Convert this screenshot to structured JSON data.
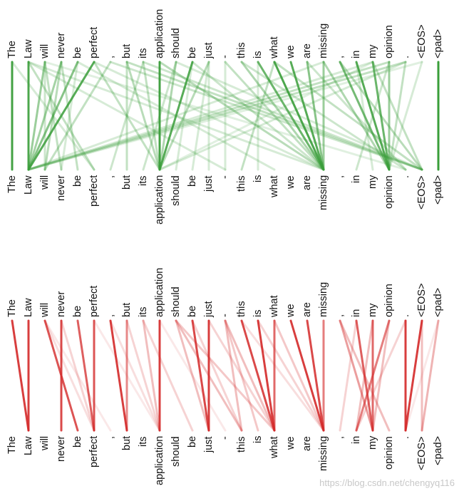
{
  "tokens": [
    "The",
    "Law",
    "will",
    "never",
    "be",
    "perfect",
    ",",
    "but",
    "its",
    "application",
    "should",
    "be",
    "just",
    "-",
    "this",
    "is",
    "what",
    "we",
    "are",
    "missing",
    ",",
    "in",
    "my",
    "opinion",
    ".",
    "<EOS>",
    "<pad>"
  ],
  "colors": {
    "top_edge": "#3a9e3a",
    "bottom_edge": "#d42a2a",
    "text": "#111111"
  },
  "panels": [
    {
      "name": "attention-green",
      "edges": [
        [
          0,
          0,
          0.95
        ],
        [
          1,
          1,
          0.9
        ],
        [
          24,
          1,
          0.3
        ],
        [
          19,
          1,
          0.2
        ],
        [
          22,
          1,
          0.2
        ],
        [
          25,
          1,
          0.15
        ],
        [
          5,
          1,
          0.85
        ],
        [
          4,
          1,
          0.6
        ],
        [
          3,
          1,
          0.45
        ],
        [
          2,
          1,
          0.5
        ],
        [
          2,
          3,
          0.3
        ],
        [
          3,
          4,
          0.3
        ],
        [
          1,
          5,
          0.3
        ],
        [
          0,
          5,
          0.2
        ],
        [
          6,
          2,
          0.3
        ],
        [
          3,
          2,
          0.35
        ],
        [
          2,
          2,
          0.25
        ],
        [
          4,
          3,
          0.2
        ],
        [
          9,
          9,
          0.95
        ],
        [
          11,
          9,
          0.85
        ],
        [
          10,
          9,
          0.4
        ],
        [
          8,
          9,
          0.3
        ],
        [
          7,
          9,
          0.35
        ],
        [
          5,
          9,
          0.3
        ],
        [
          12,
          9,
          0.35
        ],
        [
          7,
          7,
          0.3
        ],
        [
          8,
          6,
          0.25
        ],
        [
          10,
          8,
          0.25
        ],
        [
          11,
          10,
          0.2
        ],
        [
          12,
          11,
          0.2
        ],
        [
          12,
          12,
          0.2
        ],
        [
          7,
          25,
          0.3
        ],
        [
          8,
          25,
          0.25
        ],
        [
          6,
          25,
          0.25
        ],
        [
          10,
          25,
          0.2
        ],
        [
          9,
          19,
          0.35
        ],
        [
          11,
          19,
          0.25
        ],
        [
          13,
          19,
          0.3
        ],
        [
          14,
          19,
          0.4
        ],
        [
          15,
          19,
          0.75
        ],
        [
          16,
          19,
          0.9
        ],
        [
          17,
          19,
          0.85
        ],
        [
          18,
          19,
          0.6
        ],
        [
          19,
          19,
          0.5
        ],
        [
          15,
          15,
          0.2
        ],
        [
          16,
          14,
          0.3
        ],
        [
          13,
          13,
          0.2
        ],
        [
          14,
          24,
          0.25
        ],
        [
          16,
          25,
          0.3
        ],
        [
          18,
          24,
          0.25
        ],
        [
          20,
          23,
          0.7
        ],
        [
          21,
          23,
          0.85
        ],
        [
          22,
          23,
          0.75
        ],
        [
          23,
          23,
          0.5
        ],
        [
          19,
          23,
          0.4
        ],
        [
          24,
          23,
          0.3
        ],
        [
          20,
          25,
          0.35
        ],
        [
          22,
          25,
          0.3
        ],
        [
          23,
          21,
          0.25
        ],
        [
          21,
          22,
          0.2
        ],
        [
          23,
          1,
          0.3
        ],
        [
          24,
          9,
          0.2
        ],
        [
          22,
          9,
          0.15
        ],
        [
          25,
          23,
          0.2
        ],
        [
          26,
          26,
          1.0
        ],
        [
          1,
          13,
          0.2
        ],
        [
          4,
          16,
          0.2
        ],
        [
          2,
          24,
          0.15
        ],
        [
          5,
          19,
          0.2
        ],
        [
          1,
          19,
          0.2
        ]
      ]
    },
    {
      "name": "attention-red",
      "edges": [
        [
          0,
          1,
          0.9
        ],
        [
          1,
          1,
          0.9
        ],
        [
          2,
          4,
          0.8
        ],
        [
          3,
          3,
          0.85
        ],
        [
          4,
          5,
          0.75
        ],
        [
          5,
          5,
          0.8
        ],
        [
          6,
          7,
          0.9
        ],
        [
          7,
          7,
          0.55
        ],
        [
          8,
          9,
          0.3
        ],
        [
          9,
          9,
          0.9
        ],
        [
          10,
          12,
          0.3
        ],
        [
          11,
          12,
          0.85
        ],
        [
          12,
          12,
          0.9
        ],
        [
          13,
          16,
          0.3
        ],
        [
          14,
          16,
          0.85
        ],
        [
          15,
          16,
          0.9
        ],
        [
          16,
          16,
          0.7
        ],
        [
          17,
          19,
          0.9
        ],
        [
          18,
          19,
          0.85
        ],
        [
          19,
          19,
          0.6
        ],
        [
          20,
          22,
          0.45
        ],
        [
          21,
          22,
          0.75
        ],
        [
          22,
          22,
          0.7
        ],
        [
          23,
          21,
          0.6
        ],
        [
          24,
          24,
          0.9
        ],
        [
          25,
          24,
          0.9
        ],
        [
          26,
          25,
          0.35
        ],
        [
          13,
          14,
          0.3
        ],
        [
          10,
          14,
          0.3
        ],
        [
          10,
          16,
          0.25
        ],
        [
          13,
          15,
          0.25
        ],
        [
          11,
          14,
          0.2
        ],
        [
          16,
          19,
          0.25
        ],
        [
          7,
          9,
          0.2
        ],
        [
          8,
          11,
          0.2
        ],
        [
          2,
          5,
          0.15
        ],
        [
          20,
          23,
          0.3
        ],
        [
          23,
          22,
          0.3
        ],
        [
          24,
          21,
          0.2
        ],
        [
          22,
          21,
          0.3
        ],
        [
          21,
          20,
          0.2
        ],
        [
          6,
          9,
          0.15
        ],
        [
          15,
          19,
          0.2
        ],
        [
          14,
          19,
          0.15
        ],
        [
          3,
          5,
          0.2
        ],
        [
          12,
          16,
          0.2
        ],
        [
          25,
          25,
          0.3
        ],
        [
          2,
          6,
          0.1
        ],
        [
          5,
          9,
          0.1
        ],
        [
          9,
          13,
          0.1
        ],
        [
          26,
          24,
          0.1
        ]
      ]
    }
  ],
  "watermark": "https://blog.csdn.net/chengyq116"
}
